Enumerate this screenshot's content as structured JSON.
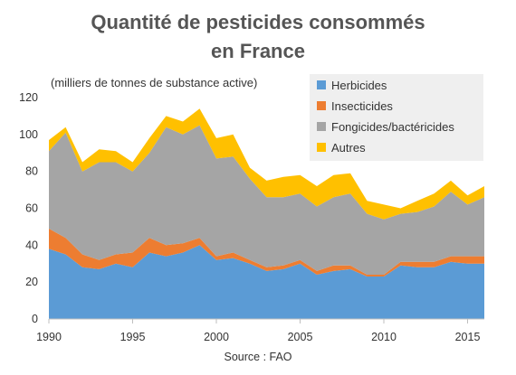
{
  "chart_data": {
    "type": "area",
    "stacked": true,
    "title_line1": "Quantité de pesticides consommés",
    "title_line2": "en France",
    "ylabel": "(milliers de tonnes de substance active)",
    "source": "Source : FAO",
    "ylim": [
      0,
      120
    ],
    "xlim": [
      1990,
      2016
    ],
    "yticks": [
      "0",
      "20",
      "40",
      "60",
      "80",
      "100",
      "120"
    ],
    "xticks": [
      "1990",
      "1995",
      "2000",
      "2005",
      "2010",
      "2015"
    ],
    "grid": false,
    "legend_position": "top-right",
    "x": [
      1990,
      1991,
      1992,
      1993,
      1994,
      1995,
      1996,
      1997,
      1998,
      1999,
      2000,
      2001,
      2002,
      2003,
      2004,
      2005,
      2006,
      2007,
      2008,
      2009,
      2010,
      2011,
      2012,
      2013,
      2014,
      2015,
      2016
    ],
    "series": [
      {
        "name": "Herbicides",
        "color": "#5b9bd5",
        "values": [
          38,
          35,
          28,
          27,
          30,
          28,
          36,
          34,
          36,
          40,
          32,
          33,
          30,
          26,
          27,
          30,
          24,
          26,
          27,
          23,
          23,
          29,
          28,
          28,
          31,
          30,
          30
        ]
      },
      {
        "name": "Insecticides",
        "color": "#ed7d31",
        "values": [
          11,
          9,
          7,
          5,
          5,
          8,
          8,
          6,
          5,
          4,
          2,
          3,
          2,
          2,
          2,
          2,
          2,
          3,
          2,
          1,
          1,
          2,
          3,
          3,
          3,
          4,
          4
        ]
      },
      {
        "name": "Fongicides/bactéricides",
        "color": "#a5a5a5",
        "values": [
          42,
          57,
          45,
          53,
          50,
          44,
          46,
          64,
          59,
          61,
          53,
          52,
          44,
          38,
          37,
          36,
          35,
          37,
          39,
          33,
          30,
          26,
          27,
          30,
          35,
          28,
          32
        ]
      },
      {
        "name": "Autres",
        "color": "#ffc000",
        "values": [
          6,
          3,
          5,
          7,
          6,
          5,
          8,
          6,
          7,
          9,
          11,
          12,
          6,
          9,
          11,
          10,
          11,
          12,
          11,
          7,
          8,
          3,
          6,
          7,
          6,
          5,
          6
        ]
      }
    ]
  }
}
